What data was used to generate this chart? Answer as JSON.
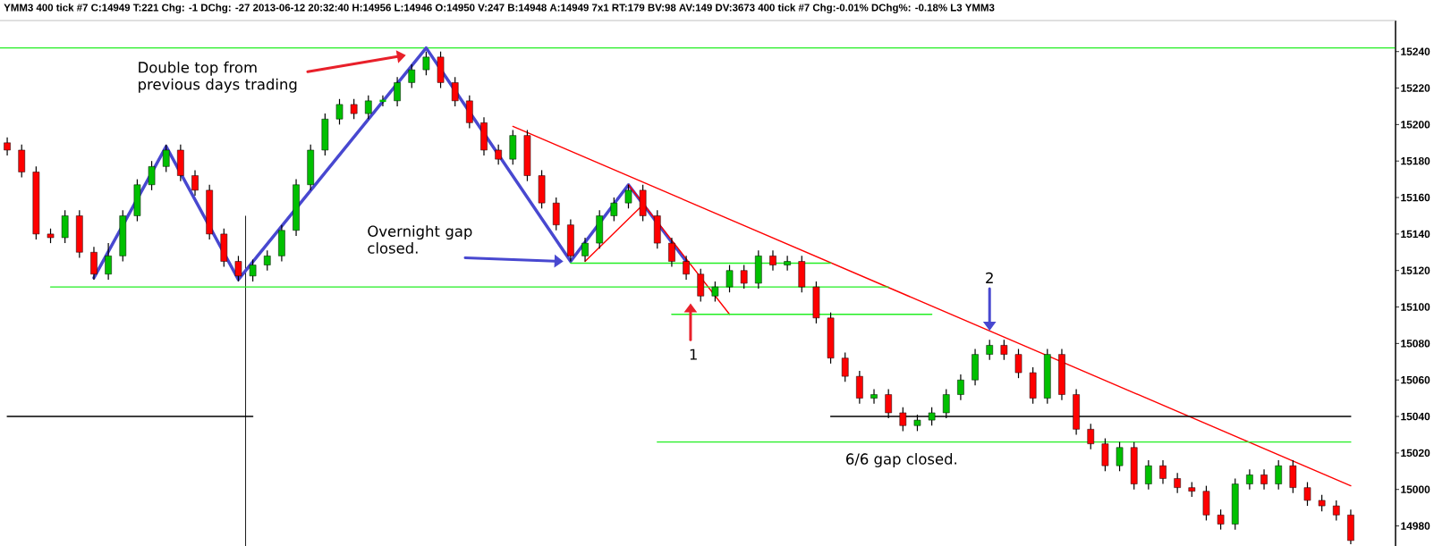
{
  "chart_data": {
    "type": "candlestick",
    "title": "YMM3  400 tick  #7 C:14949 T:221 Chg: -1 DChg: -27 2013-06-12 20:32:40 H:14956 L:14946 O:14950 V:247 B:14948 A:14949 7x1 RT:179 BV:98 AV:149 DV:3673 400 tick #7 Chg:-0.01% DChg%: -0.18% L3 YMM3",
    "categories": [
      null,
      null,
      null,
      null,
      null,
      null,
      null,
      null,
      null,
      null,
      null,
      null,
      null,
      null,
      null,
      null,
      null,
      null,
      null,
      null,
      null,
      null,
      null,
      null,
      null,
      null,
      null,
      null,
      null,
      null,
      null,
      null,
      null,
      null,
      null,
      null,
      null,
      null,
      null,
      null,
      null,
      null,
      null,
      null,
      null,
      null,
      null,
      null,
      null,
      null,
      null,
      null,
      null,
      null,
      null,
      null,
      null,
      null,
      null,
      null,
      null,
      null,
      null,
      null,
      null,
      null,
      null,
      null,
      null,
      null,
      null,
      null,
      null,
      null,
      null,
      null,
      null,
      null,
      null,
      null,
      null,
      null,
      null,
      null,
      null,
      null,
      null,
      null,
      null,
      null,
      null,
      null,
      null,
      null
    ],
    "ohlc": [
      [
        15190,
        15193,
        15183,
        15186
      ],
      [
        15186,
        15189,
        15171,
        15174
      ],
      [
        15174,
        15177,
        15137,
        15140
      ],
      [
        15140,
        15143,
        15135,
        15138
      ],
      [
        15138,
        15153,
        15135,
        15150
      ],
      [
        15150,
        15153,
        15127,
        15130
      ],
      [
        15130,
        15133,
        15115,
        15118
      ],
      [
        15118,
        15135,
        15115,
        15128
      ],
      [
        15128,
        15153,
        15125,
        15150
      ],
      [
        15150,
        15170,
        15147,
        15167
      ],
      [
        15167,
        15180,
        15164,
        15177
      ],
      [
        15177,
        15189,
        15174,
        15186
      ],
      [
        15186,
        15189,
        15169,
        15172
      ],
      [
        15172,
        15175,
        15161,
        15164
      ],
      [
        15164,
        15167,
        15137,
        15140
      ],
      [
        15140,
        15143,
        15122,
        15125
      ],
      [
        15125,
        15128,
        15114,
        15117
      ],
      [
        15117,
        15126,
        15114,
        15123
      ],
      [
        15123,
        15131,
        15120,
        15128
      ],
      [
        15128,
        15145,
        15125,
        15142
      ],
      [
        15142,
        15170,
        15139,
        15167
      ],
      [
        15167,
        15189,
        15164,
        15186
      ],
      [
        15186,
        15206,
        15183,
        15203
      ],
      [
        15203,
        15214,
        15200,
        15211
      ],
      [
        15211,
        15214,
        15203,
        15206
      ],
      [
        15206,
        15216,
        15203,
        15213
      ],
      [
        15213,
        15216,
        15210,
        15213
      ],
      [
        15213,
        15226,
        15210,
        15223
      ],
      [
        15223,
        15233,
        15220,
        15230
      ],
      [
        15230,
        15240,
        15227,
        15237
      ],
      [
        15237,
        15240,
        15220,
        15223
      ],
      [
        15223,
        15226,
        15210,
        15213
      ],
      [
        15213,
        15216,
        15198,
        15201
      ],
      [
        15201,
        15204,
        15183,
        15186
      ],
      [
        15186,
        15189,
        15178,
        15181
      ],
      [
        15181,
        15197,
        15178,
        15194
      ],
      [
        15194,
        15197,
        15169,
        15172
      ],
      [
        15172,
        15175,
        15154,
        15157
      ],
      [
        15157,
        15160,
        15142,
        15145
      ],
      [
        15145,
        15148,
        15125,
        15128
      ],
      [
        15128,
        15138,
        15125,
        15135
      ],
      [
        15135,
        15153,
        15132,
        15150
      ],
      [
        15150,
        15160,
        15147,
        15157
      ],
      [
        15157,
        15167,
        15154,
        15164
      ],
      [
        15164,
        15167,
        15147,
        15150
      ],
      [
        15150,
        15153,
        15132,
        15135
      ],
      [
        15135,
        15138,
        15122,
        15125
      ],
      [
        15125,
        15128,
        15115,
        15118
      ],
      [
        15118,
        15121,
        15103,
        15106
      ],
      [
        15106,
        15114,
        15103,
        15111
      ],
      [
        15111,
        15123,
        15108,
        15120
      ],
      [
        15120,
        15123,
        15110,
        15113
      ],
      [
        15113,
        15131,
        15110,
        15128
      ],
      [
        15128,
        15131,
        15120,
        15123
      ],
      [
        15123,
        15128,
        15120,
        15125
      ],
      [
        15125,
        15128,
        15108,
        15111
      ],
      [
        15111,
        15114,
        15091,
        15094
      ],
      [
        15094,
        15097,
        15069,
        15072
      ],
      [
        15072,
        15075,
        15059,
        15062
      ],
      [
        15062,
        15065,
        15047,
        15050
      ],
      [
        15050,
        15055,
        15047,
        15052
      ],
      [
        15052,
        15055,
        15039,
        15042
      ],
      [
        15042,
        15045,
        15032,
        15035
      ],
      [
        15035,
        15041,
        15032,
        15038
      ],
      [
        15038,
        15045,
        15035,
        15042
      ],
      [
        15042,
        15055,
        15039,
        15052
      ],
      [
        15052,
        15063,
        15049,
        15060
      ],
      [
        15060,
        15077,
        15057,
        15074
      ],
      [
        15074,
        15082,
        15071,
        15079
      ],
      [
        15079,
        15082,
        15071,
        15074
      ],
      [
        15074,
        15077,
        15061,
        15064
      ],
      [
        15064,
        15067,
        15047,
        15050
      ],
      [
        15050,
        15077,
        15047,
        15074
      ],
      [
        15074,
        15077,
        15049,
        15052
      ],
      [
        15052,
        15055,
        15030,
        15033
      ],
      [
        15033,
        15036,
        15022,
        15025
      ],
      [
        15025,
        15028,
        15010,
        15013
      ],
      [
        15013,
        15026,
        15010,
        15023
      ],
      [
        15023,
        15026,
        15000,
        15003
      ],
      [
        15003,
        15016,
        15000,
        15013
      ],
      [
        15013,
        15016,
        15003,
        15006
      ],
      [
        15006,
        15009,
        14998,
        15001
      ],
      [
        15001,
        15004,
        14996,
        14999
      ],
      [
        14999,
        15002,
        14983,
        14986
      ],
      [
        14986,
        14989,
        14978,
        14981
      ],
      [
        14981,
        15006,
        14978,
        15003
      ],
      [
        15003,
        15011,
        15000,
        15008
      ],
      [
        15008,
        15011,
        15000,
        15003
      ],
      [
        15003,
        15016,
        15000,
        15013
      ],
      [
        15013,
        15016,
        14998,
        15001
      ],
      [
        15001,
        15004,
        14991,
        14994
      ],
      [
        14994,
        14997,
        14988,
        14991
      ],
      [
        14991,
        14994,
        14983,
        14986
      ],
      [
        14986,
        14989,
        14970,
        14972
      ]
    ],
    "colors": [
      "#ff0000",
      "#ff0000",
      "#ff0000",
      "#ff0000",
      "#00c000",
      "#ff0000",
      "#ff0000",
      "#00c000",
      "#00c000",
      "#00c000",
      "#00c000",
      "#00c000",
      "#ff0000",
      "#ff0000",
      "#ff0000",
      "#ff0000",
      "#ff0000",
      "#00c000",
      "#00c000",
      "#00c000",
      "#00c000",
      "#00c000",
      "#00c000",
      "#00c000",
      "#ff0000",
      "#00c000",
      "#00c000",
      "#00c000",
      "#00c000",
      "#00c000",
      "#ff0000",
      "#ff0000",
      "#ff0000",
      "#ff0000",
      "#ff0000",
      "#00c000",
      "#ff0000",
      "#ff0000",
      "#ff0000",
      "#ff0000",
      "#00c000",
      "#00c000",
      "#00c000",
      "#00c000",
      "#ff0000",
      "#ff0000",
      "#ff0000",
      "#ff0000",
      "#ff0000",
      "#00c000",
      "#00c000",
      "#ff0000",
      "#00c000",
      "#ff0000",
      "#00c000",
      "#ff0000",
      "#ff0000",
      "#ff0000",
      "#ff0000",
      "#ff0000",
      "#00c000",
      "#ff0000",
      "#ff0000",
      "#00c000",
      "#00c000",
      "#00c000",
      "#00c000",
      "#00c000",
      "#00c000",
      "#ff0000",
      "#ff0000",
      "#ff0000",
      "#00c000",
      "#ff0000",
      "#ff0000",
      "#ff0000",
      "#ff0000",
      "#00c000",
      "#ff0000",
      "#00c000",
      "#ff0000",
      "#ff0000",
      "#ff0000",
      "#ff0000",
      "#ff0000",
      "#00c000",
      "#00c000",
      "#ff0000",
      "#00c000",
      "#ff0000",
      "#ff0000",
      "#ff0000",
      "#ff0000",
      "#ff0000"
    ],
    "series": [
      {
        "type": "line",
        "color": "#4848d0",
        "values": [
          null,
          null,
          null,
          null,
          null,
          null,
          15116,
          null,
          null,
          null,
          null,
          15188,
          null,
          null,
          null,
          null,
          15115,
          null,
          null,
          null,
          null,
          null,
          null,
          null,
          null,
          null,
          null,
          null,
          null,
          15242,
          null,
          null,
          null,
          null,
          null,
          null,
          null,
          null,
          null,
          15125,
          null,
          null,
          null,
          15167,
          null,
          null,
          null,
          15125,
          null,
          null,
          null,
          null,
          null,
          null,
          null,
          null,
          null,
          null,
          null,
          null,
          null,
          null,
          null,
          null,
          null,
          null,
          null,
          null,
          null,
          null,
          null,
          null,
          null,
          null,
          null,
          null,
          null,
          null,
          null,
          null,
          null,
          null,
          null,
          null,
          null,
          null,
          null,
          null,
          null,
          null,
          null,
          null,
          null,
          null
        ]
      },
      {
        "type": "line",
        "color": "#ff0000",
        "values": [
          null,
          null,
          null,
          null,
          null,
          null,
          null,
          null,
          null,
          null,
          null,
          null,
          null,
          null,
          null,
          null,
          null,
          null,
          null,
          null,
          null,
          null,
          null,
          null,
          null,
          null,
          null,
          null,
          null,
          null,
          null,
          null,
          null,
          null,
          null,
          15199,
          null,
          null,
          null,
          null,
          null,
          null,
          null,
          null,
          null,
          null,
          null,
          null,
          null,
          null,
          null,
          null,
          null,
          null,
          null,
          null,
          null,
          null,
          null,
          null,
          null,
          null,
          null,
          null,
          null,
          null,
          null,
          null,
          null,
          null,
          null,
          null,
          null,
          null,
          null,
          null,
          null,
          null,
          null,
          null,
          null,
          null,
          null,
          null,
          null,
          null,
          null,
          null,
          null,
          null,
          null,
          null,
          null,
          15002
        ]
      },
      {
        "type": "line",
        "color": "#ff0000",
        "values": [
          null,
          null,
          null,
          null,
          null,
          null,
          null,
          null,
          null,
          null,
          null,
          null,
          null,
          null,
          null,
          null,
          null,
          null,
          null,
          null,
          null,
          null,
          null,
          null,
          null,
          null,
          null,
          null,
          null,
          null,
          null,
          null,
          null,
          null,
          null,
          null,
          null,
          null,
          null,
          null,
          null,
          null,
          null,
          15167,
          null,
          null,
          null,
          null,
          null,
          null,
          15096,
          null,
          null,
          null,
          null,
          null,
          null,
          null,
          null,
          null,
          null,
          null,
          null,
          null,
          null,
          null,
          null,
          null,
          null,
          null,
          null,
          null,
          null,
          null,
          null,
          null,
          null,
          null,
          null,
          null,
          null,
          null,
          null,
          null,
          null,
          null,
          null,
          null,
          null,
          null,
          null,
          null,
          null,
          null
        ]
      },
      {
        "type": "line",
        "color": "#ff0000",
        "values": [
          null,
          null,
          null,
          null,
          null,
          null,
          null,
          null,
          null,
          null,
          null,
          null,
          null,
          null,
          null,
          null,
          null,
          null,
          null,
          null,
          null,
          null,
          null,
          null,
          null,
          null,
          null,
          null,
          null,
          null,
          null,
          null,
          null,
          null,
          null,
          null,
          null,
          null,
          null,
          null,
          15125,
          null,
          null,
          null,
          15156,
          null,
          null,
          null,
          null,
          null,
          null,
          null,
          null,
          null,
          null,
          null,
          null,
          null,
          null,
          null,
          null,
          null,
          null,
          null,
          null,
          null,
          null,
          null,
          null,
          null,
          null,
          null,
          null,
          null,
          null,
          null,
          null,
          null,
          null,
          null,
          null,
          null,
          null,
          null,
          null,
          null,
          null,
          null,
          null,
          null,
          null,
          null,
          null,
          null
        ]
      },
      {
        "type": "line",
        "color": "#22ee22",
        "values": [
          null,
          null,
          null,
          15111,
          null,
          null,
          null,
          null,
          null,
          null,
          null,
          null,
          null,
          null,
          null,
          null,
          null,
          null,
          null,
          null,
          null,
          null,
          null,
          null,
          null,
          null,
          null,
          null,
          null,
          null,
          null,
          null,
          null,
          null,
          null,
          null,
          null,
          null,
          null,
          null,
          null,
          null,
          null,
          null,
          null,
          null,
          null,
          null,
          null,
          null,
          null,
          null,
          null,
          null,
          null,
          null,
          null,
          null,
          null,
          null,
          null,
          15111,
          null,
          null,
          null,
          null,
          null,
          null,
          null,
          null,
          null,
          null,
          null,
          null,
          null,
          null,
          null,
          null,
          null,
          null,
          null,
          null,
          null,
          null,
          null,
          null,
          null,
          null,
          null,
          null,
          null,
          null,
          null,
          null
        ]
      },
      {
        "type": "line",
        "color": "#22ee22",
        "values": [
          null,
          null,
          null,
          null,
          null,
          null,
          null,
          null,
          null,
          null,
          null,
          null,
          null,
          null,
          null,
          null,
          null,
          null,
          null,
          null,
          null,
          null,
          null,
          null,
          null,
          null,
          null,
          null,
          null,
          null,
          null,
          null,
          null,
          null,
          null,
          null,
          null,
          null,
          null,
          15124,
          null,
          null,
          null,
          null,
          null,
          null,
          null,
          null,
          null,
          null,
          null,
          null,
          null,
          null,
          null,
          null,
          null,
          15124,
          null,
          null,
          null,
          null,
          null,
          null,
          null,
          null,
          null,
          null,
          null,
          null,
          null,
          null,
          null,
          null,
          null,
          null,
          null,
          null,
          null,
          null,
          null,
          null,
          null,
          null,
          null,
          null,
          null,
          null,
          null,
          null,
          null,
          null,
          null,
          null
        ]
      },
      {
        "type": "line",
        "color": "#22ee22",
        "values": [
          null,
          null,
          null,
          null,
          null,
          null,
          null,
          null,
          null,
          null,
          null,
          null,
          null,
          null,
          null,
          null,
          null,
          null,
          null,
          null,
          null,
          null,
          null,
          null,
          null,
          null,
          null,
          null,
          null,
          null,
          null,
          null,
          null,
          null,
          null,
          null,
          null,
          null,
          null,
          null,
          null,
          null,
          null,
          null,
          null,
          null,
          15096,
          null,
          null,
          null,
          null,
          null,
          null,
          null,
          null,
          null,
          null,
          null,
          null,
          null,
          null,
          null,
          null,
          null,
          15096,
          null,
          null,
          null,
          null,
          null,
          null,
          null,
          null,
          null,
          null,
          null,
          null,
          null,
          null,
          null,
          null,
          null,
          null,
          null,
          null,
          null,
          null,
          null,
          null,
          null,
          null,
          null,
          null,
          null
        ]
      },
      {
        "type": "line",
        "color": "#22ee22",
        "values": [
          null,
          null,
          null,
          null,
          null,
          null,
          null,
          null,
          null,
          null,
          null,
          null,
          null,
          null,
          null,
          null,
          null,
          null,
          null,
          null,
          null,
          null,
          null,
          null,
          null,
          null,
          null,
          null,
          null,
          null,
          null,
          null,
          null,
          null,
          null,
          null,
          null,
          null,
          null,
          null,
          null,
          null,
          null,
          null,
          null,
          15026,
          null,
          null,
          null,
          null,
          null,
          null,
          null,
          null,
          null,
          null,
          null,
          null,
          null,
          null,
          null,
          null,
          null,
          null,
          null,
          null,
          null,
          null,
          null,
          null,
          null,
          null,
          null,
          null,
          null,
          null,
          null,
          null,
          null,
          null,
          null,
          null,
          null,
          null,
          null,
          null,
          null,
          null,
          null,
          null,
          null,
          null,
          null,
          15026
        ]
      },
      {
        "type": "line",
        "color": "#000000",
        "values": [
          15040,
          null,
          null,
          null,
          null,
          null,
          null,
          null,
          null,
          null,
          null,
          null,
          null,
          null,
          null,
          null,
          null,
          15040,
          null,
          null,
          null,
          null,
          null,
          null,
          null,
          null,
          null,
          null,
          null,
          null,
          null,
          null,
          null,
          null,
          null,
          null,
          null,
          null,
          null,
          null,
          null,
          null,
          null,
          null,
          null,
          null,
          null,
          null,
          null,
          null,
          null,
          null,
          null,
          null,
          null,
          null,
          null,
          null,
          null,
          null,
          null,
          null,
          null,
          null,
          null,
          null,
          null,
          null,
          null,
          null,
          null,
          null,
          null,
          null,
          null,
          null,
          null,
          null,
          null,
          null,
          null,
          null,
          null,
          null,
          null,
          null,
          null,
          null,
          null,
          null,
          null,
          null,
          null,
          null
        ]
      },
      {
        "type": "line",
        "color": "#000000",
        "values": [
          null,
          null,
          null,
          null,
          null,
          null,
          null,
          null,
          null,
          null,
          null,
          null,
          null,
          null,
          null,
          null,
          null,
          null,
          null,
          null,
          null,
          null,
          null,
          null,
          null,
          null,
          null,
          null,
          null,
          null,
          null,
          null,
          null,
          null,
          null,
          null,
          null,
          null,
          null,
          null,
          null,
          null,
          null,
          null,
          null,
          null,
          null,
          null,
          null,
          null,
          null,
          null,
          null,
          null,
          null,
          null,
          null,
          15040,
          null,
          null,
          null,
          null,
          null,
          null,
          null,
          null,
          null,
          null,
          null,
          null,
          null,
          null,
          null,
          null,
          null,
          null,
          null,
          null,
          null,
          null,
          null,
          null,
          null,
          null,
          null,
          null,
          null,
          null,
          null,
          null,
          null,
          null,
          null,
          15040
        ]
      }
    ],
    "ref_lines": [
      {
        "axis": "y",
        "value": 15242,
        "color": "#22ee22"
      }
    ],
    "annotations": [
      "Double top from previous days trading",
      "Overnight gap closed.",
      "1",
      "2",
      "6/6 gap closed."
    ],
    "ylim": [
      14969,
      15257
    ],
    "yticks": [
      14980,
      15000,
      15020,
      15040,
      15060,
      15080,
      15100,
      15120,
      15140,
      15160,
      15180,
      15200,
      15220,
      15240
    ]
  }
}
